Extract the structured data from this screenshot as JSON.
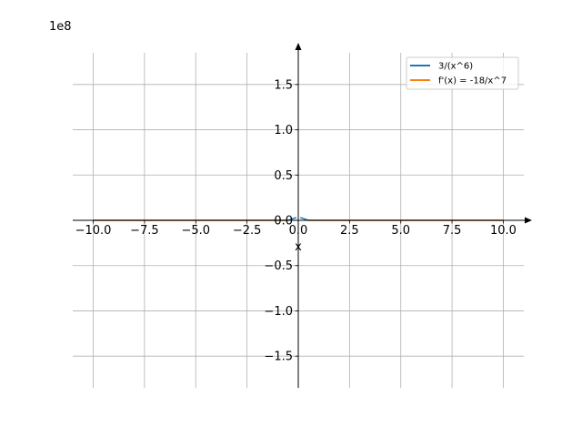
{
  "chart_data": {
    "type": "line",
    "title": "",
    "xlabel": "x",
    "ylabel": "",
    "y_scale_label": "1e8",
    "xlim": [
      -11,
      11
    ],
    "ylim": [
      -1.85,
      1.85
    ],
    "y_scale_factor": 100000000,
    "grid": true,
    "legend_position": "top-right",
    "x_ticks": [
      -10.0,
      -7.5,
      -5.0,
      -2.5,
      0.0,
      2.5,
      5.0,
      7.5,
      10.0
    ],
    "x_tick_labels": [
      "−10.0",
      "−7.5",
      "−5.0",
      "−2.5",
      "0.0",
      "2.5",
      "5.0",
      "7.5",
      "10.0"
    ],
    "y_ticks": [
      -1.5,
      -1.0,
      -0.5,
      0.0,
      0.5,
      1.0,
      1.5
    ],
    "y_tick_labels": [
      "−1.5",
      "−1.0",
      "−0.5",
      "0.0",
      "0.5",
      "1.0",
      "1.5"
    ],
    "series": [
      {
        "name": "3/(x^6)",
        "color": "#1f77b4",
        "x": [
          -10,
          -7.5,
          -5,
          -2.5,
          -1,
          -0.5,
          -0.1,
          0.1,
          0.5,
          1,
          2.5,
          5,
          7.5,
          10
        ],
        "y": [
          0,
          0,
          0,
          0,
          0,
          0,
          0.03,
          0.03,
          0,
          0,
          0,
          0,
          0,
          0
        ]
      },
      {
        "name": "f'(x) = -18/x^7",
        "color": "#ff7f0e",
        "x": [
          -10,
          -7.5,
          -5,
          -2.5,
          -1,
          -0.5,
          0.5,
          1,
          2.5,
          5,
          7.5,
          10
        ],
        "y": [
          0,
          0,
          0,
          0,
          0,
          0,
          0,
          0,
          0,
          0,
          0,
          0
        ]
      }
    ]
  }
}
